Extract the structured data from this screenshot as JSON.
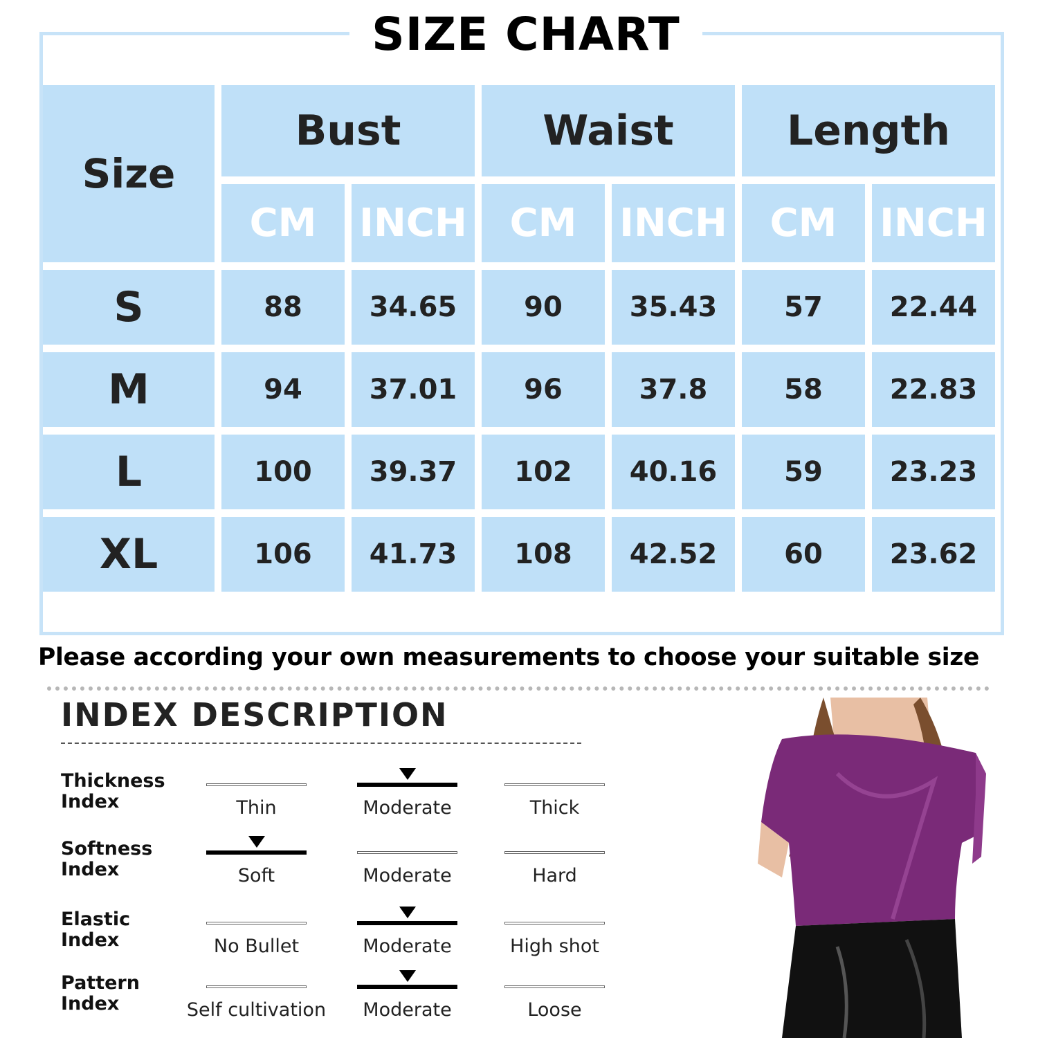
{
  "title": "SIZE CHART",
  "table": {
    "size_header": "Size",
    "groups": [
      "Bust",
      "Waist",
      "Length"
    ],
    "units": [
      "CM",
      "INCH",
      "CM",
      "INCH",
      "CM",
      "INCH"
    ],
    "rows": [
      {
        "size": "S",
        "values": [
          "88",
          "34.65",
          "90",
          "35.43",
          "57",
          "22.44"
        ]
      },
      {
        "size": "M",
        "values": [
          "94",
          "37.01",
          "96",
          "37.8",
          "58",
          "22.83"
        ]
      },
      {
        "size": "L",
        "values": [
          "100",
          "39.37",
          "102",
          "40.16",
          "59",
          "23.23"
        ]
      },
      {
        "size": "XL",
        "values": [
          "106",
          "41.73",
          "108",
          "42.52",
          "60",
          "23.62"
        ]
      }
    ]
  },
  "note": "Please according your own measurements to choose your suitable size",
  "index": {
    "title": "INDEX DESCRIPTION",
    "rows": [
      {
        "label_1": "Thickness",
        "label_2": "Index",
        "options": [
          "Thin",
          "Moderate",
          "Thick"
        ],
        "selected": 1
      },
      {
        "label_1": "Softness",
        "label_2": "Index",
        "options": [
          "Soft",
          "Moderate",
          "Hard"
        ],
        "selected": 0
      },
      {
        "label_1": "Elastic",
        "label_2": "Index",
        "options": [
          "No Bullet",
          "Moderate",
          "High shot"
        ],
        "selected": 1
      },
      {
        "label_1": "Pattern",
        "label_2": "Index",
        "options": [
          "Self cultivation",
          "Moderate",
          "Loose"
        ],
        "selected": 1
      }
    ]
  },
  "colors": {
    "cell": "#bfe0f8",
    "frame": "#c7e3f8",
    "top": "#7a2a78"
  }
}
